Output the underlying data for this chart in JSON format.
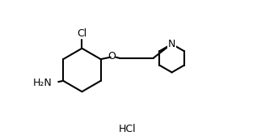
{
  "background_color": "#ffffff",
  "line_color": "#000000",
  "text_color": "#000000",
  "line_width": 1.5,
  "font_size": 9,
  "hcl_font_size": 9,
  "hcl_text": "HCl",
  "cl_text": "Cl",
  "o_text": "O",
  "n_text": "N",
  "nh2_text": "H₂N"
}
